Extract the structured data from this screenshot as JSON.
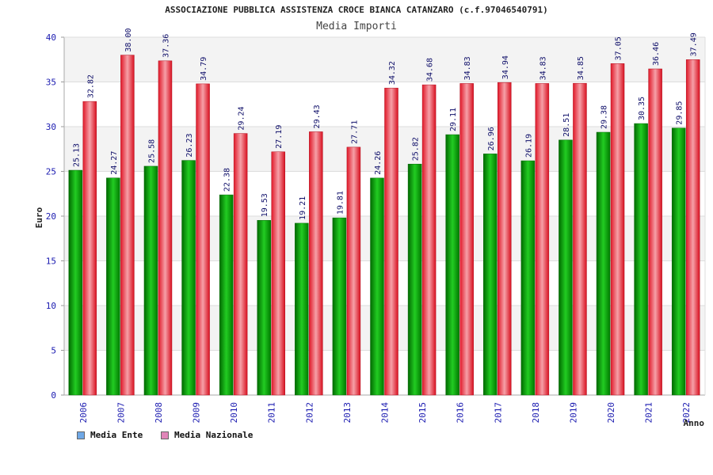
{
  "chart_data": {
    "type": "bar",
    "title": "ASSOCIAZIONE PUBBLICA ASSISTENZA CROCE BIANCA CATANZARO (c.f.97046540791)",
    "subtitle": "Media Importi",
    "xlabel": "Anno",
    "ylabel": "Euro",
    "ylim": [
      0,
      40
    ],
    "yticks": [
      0,
      5,
      10,
      15,
      20,
      25,
      30,
      35,
      40
    ],
    "grid": true,
    "legend_position": "bottom-left",
    "categories": [
      "2006",
      "2007",
      "2008",
      "2009",
      "2010",
      "2011",
      "2012",
      "2013",
      "2014",
      "2015",
      "2016",
      "2017",
      "2018",
      "2019",
      "2020",
      "2021",
      "2022"
    ],
    "series": [
      {
        "name": "Media Ente",
        "color": "#11aa11",
        "legend_color": "#6fa8e6",
        "values": [
          25.13,
          24.27,
          25.58,
          26.23,
          22.38,
          19.53,
          19.21,
          19.81,
          24.26,
          25.82,
          29.11,
          26.96,
          26.19,
          28.51,
          29.38,
          30.35,
          29.85
        ]
      },
      {
        "name": "Media Nazionale",
        "color": "#ee2233",
        "legend_color": "#e085b8",
        "values": [
          32.82,
          38.0,
          37.36,
          34.79,
          29.24,
          27.19,
          29.43,
          27.71,
          34.32,
          34.68,
          34.83,
          34.94,
          34.83,
          34.85,
          37.05,
          36.46,
          37.49
        ]
      }
    ],
    "data_labels": [
      [
        "25.13",
        "24.27",
        "25.58",
        "26.23",
        "22.38",
        "19.53",
        "19.21",
        "19.81",
        "24.26",
        "25.82",
        "29.11",
        "26.96",
        "26.19",
        "28.51",
        "29.38",
        "30.35",
        "29.85"
      ],
      [
        "32.82",
        "38.00",
        "37.36",
        "34.79",
        "29.24",
        "27.19",
        "29.43",
        "27.71",
        "34.32",
        "34.68",
        "34.83",
        "34.94",
        "34.83",
        "34.85",
        "37.05",
        "36.46",
        "37.49"
      ]
    ]
  }
}
